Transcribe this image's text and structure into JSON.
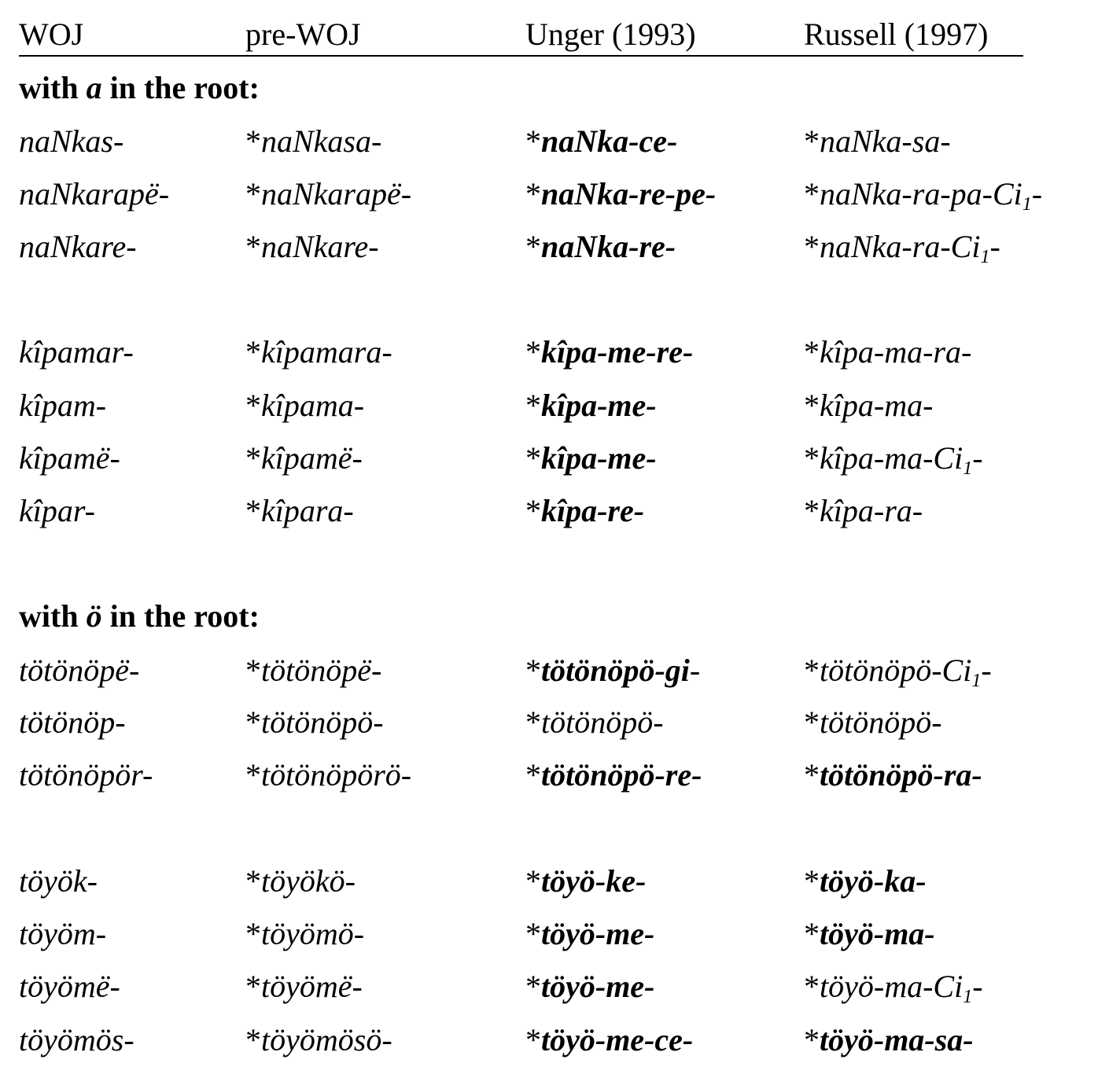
{
  "header": {
    "col_woj": "WOJ",
    "col_prewoj": "pre-WOJ",
    "col_unger": "Unger (1993)",
    "col_russell": "Russell (1997)"
  },
  "sections": [
    {
      "title_prefix": "with ",
      "title_vowel": "a",
      "title_suffix": " in the root:",
      "rows": [
        {
          "woj": "naNkas-",
          "pre": "naNkasa-",
          "unger": "naNka-ce-",
          "unger_bold": true,
          "russell": "naNka-sa-",
          "russell_bold": false,
          "russell_sub": ""
        },
        {
          "woj": "naNkarapë-",
          "pre": "naNkarapë-",
          "unger": "naNka-re-pe-",
          "unger_bold": true,
          "russell": "naNka-ra-pa-Ci",
          "russell_bold": false,
          "russell_sub": "1"
        },
        {
          "woj": "naNkare-",
          "pre": "naNkare-",
          "unger": "naNka-re-",
          "unger_bold": true,
          "russell": "naNka-ra-Ci",
          "russell_bold": false,
          "russell_sub": "1"
        },
        {
          "woj": "kîpamar-",
          "pre": "kîpamara-",
          "unger": "kîpa-me-re-",
          "unger_bold": true,
          "russell": "kîpa-ma-ra-",
          "russell_bold": false,
          "russell_sub": ""
        },
        {
          "woj": "kîpam-",
          "pre": "kîpama-",
          "unger": "kîpa-me-",
          "unger_bold": true,
          "russell": "kîpa-ma-",
          "russell_bold": false,
          "russell_sub": ""
        },
        {
          "woj": "kîpamë-",
          "pre": "kîpamë-",
          "unger": "kîpa-me-",
          "unger_bold": true,
          "russell": "kîpa-ma-Ci",
          "russell_bold": false,
          "russell_sub": "1"
        },
        {
          "woj": "kîpar-",
          "pre": "kîpara-",
          "unger": "kîpa-re-",
          "unger_bold": true,
          "russell": "kîpa-ra-",
          "russell_bold": false,
          "russell_sub": ""
        }
      ]
    },
    {
      "title_prefix": "with ",
      "title_vowel": "ö",
      "title_suffix": " in the root:",
      "rows": [
        {
          "woj": "tötönöpë-",
          "pre": "tötönöpë-",
          "unger": "tötönöpö-gi",
          "unger_bold": true,
          "unger_tail": "-",
          "russell": "tötönöpö-Ci",
          "russell_bold": false,
          "russell_sub": "1"
        },
        {
          "woj": "tötönöp-",
          "pre": "tötönöpö-",
          "unger": "tötönöpö-",
          "unger_bold": false,
          "russell": "tötönöpö-",
          "russell_bold": false,
          "russell_sub": ""
        },
        {
          "woj": "tötönöpör-",
          "pre": "tötönöpörö-",
          "unger": "tötönöpö-re-",
          "unger_bold": true,
          "russell": "tötönöpö-ra-",
          "russell_bold": true,
          "russell_sub": ""
        },
        {
          "woj": "töyök-",
          "pre": "töyökö-",
          "unger": "töyö-ke-",
          "unger_bold": true,
          "russell": "töyö-ka-",
          "russell_bold": true,
          "russell_sub": ""
        },
        {
          "woj": "töyöm-",
          "pre": "töyömö-",
          "unger": "töyö-me-",
          "unger_bold": true,
          "russell": "töyö-ma-",
          "russell_bold": true,
          "russell_sub": ""
        },
        {
          "woj": "töyömë-",
          "pre": "töyömë-",
          "unger": "töyö-me-",
          "unger_bold": true,
          "russell": "töyö-ma-Ci",
          "russell_bold": false,
          "russell_sub": "1"
        },
        {
          "woj": "töyömös-",
          "pre": "töyömösö-",
          "unger": "töyö-me-ce-",
          "unger_bold": true,
          "russell": "töyö-ma-sa-",
          "russell_bold": true,
          "russell_sub": ""
        }
      ]
    }
  ],
  "asterisk": "*",
  "sub_tail": "-"
}
